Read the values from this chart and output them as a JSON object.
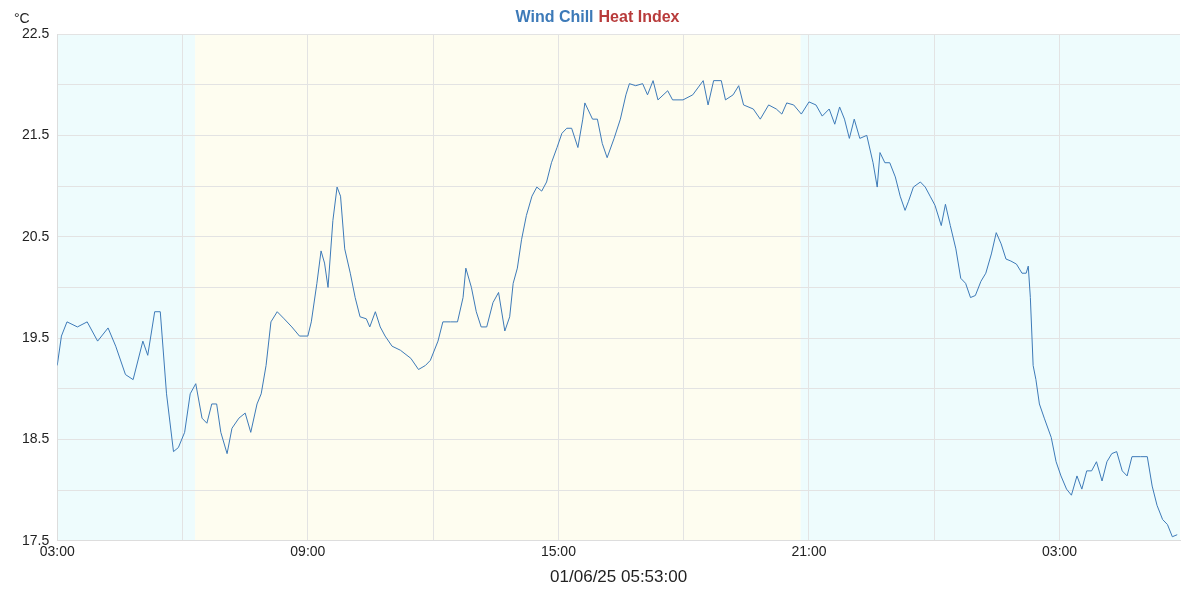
{
  "chart_data": {
    "type": "line",
    "xlabel": "01/06/25 05:53:00",
    "ylabel": "°C",
    "legend": "top",
    "grid": true,
    "marker": "none",
    "line_style": "solid",
    "xlim": [
      "--05-31T03:00",
      "--06-01T05:53"
    ],
    "xticks": [
      {
        "value": "--05-31T03:00",
        "label": "03:00"
      },
      {
        "value": "--05-31T06:00",
        "label": null
      },
      {
        "value": "--05-31T09:00",
        "label": "09:00"
      },
      {
        "value": "--05-31T12:00",
        "label": null
      },
      {
        "value": "--05-31T15:00",
        "label": "15:00"
      },
      {
        "value": "--05-31T18:00",
        "label": null
      },
      {
        "value": "--05-31T21:00",
        "label": "21:00"
      },
      {
        "value": "--06-01T00:00",
        "label": null
      },
      {
        "value": "--06-01T03:00",
        "label": "03:00"
      }
    ],
    "ylim": [
      17.5,
      22.5
    ],
    "yticks": [
      17.5,
      {
        "value": 18,
        "label": null
      },
      18.5,
      {
        "value": 19,
        "label": null
      },
      19.5,
      {
        "value": 20,
        "label": null
      },
      20.5,
      {
        "value": 21,
        "label": null
      },
      21.5,
      {
        "value": 22,
        "label": null
      },
      22.5
    ],
    "bands": [
      {
        "axis": "x",
        "from": "--05-31T03:00",
        "to": "--05-31T06:18",
        "color": "#eefcfd"
      },
      {
        "axis": "x",
        "from": "--05-31T06:18",
        "to": "--05-31T20:48",
        "color": "#fefdf0"
      },
      {
        "axis": "x",
        "from": "--05-31T20:48",
        "to": "--06-01T05:53",
        "color": "#eefcfd"
      }
    ],
    "series": [
      {
        "name": "Wind Chill",
        "color": "#3d7ab8",
        "x": [
          "--05-31T03:00",
          "--05-31T03:06",
          "--05-31T03:14",
          "--05-31T03:29",
          "--05-31T03:43",
          "--05-31T03:58",
          "--05-31T04:13",
          "--05-31T04:24",
          "--05-31T04:38",
          "--05-31T04:49",
          "--05-31T05:03",
          "--05-31T05:10",
          "--05-31T05:20",
          "--05-31T05:28",
          "--05-31T05:37",
          "--05-31T05:47",
          "--05-31T05:54",
          "--05-31T06:03",
          "--05-31T06:11",
          "--05-31T06:19",
          "--05-31T06:28",
          "--05-31T06:35",
          "--05-31T06:42",
          "--05-31T06:49",
          "--05-31T06:55",
          "--05-31T07:04",
          "--05-31T07:11",
          "--05-31T07:21",
          "--05-31T07:30",
          "--05-31T07:38",
          "--05-31T07:47",
          "--05-31T07:53",
          "--05-31T08:00",
          "--05-31T08:07",
          "--05-31T08:16",
          "--05-31T08:26",
          "--05-31T08:37",
          "--05-31T08:48",
          "--05-31T09:00",
          "--05-31T09:05",
          "--05-31T09:13",
          "--05-31T09:19",
          "--05-31T09:24",
          "--05-31T09:29",
          "--05-31T09:36",
          "--05-31T09:42",
          "--05-31T09:47",
          "--05-31T09:53",
          "--05-31T10:01",
          "--05-31T10:08",
          "--05-31T10:15",
          "--05-31T10:24",
          "--05-31T10:29",
          "--05-31T10:37",
          "--05-31T10:44",
          "--05-31T10:51",
          "--05-31T11:01",
          "--05-31T11:13",
          "--05-31T11:28",
          "--05-31T11:39",
          "--05-31T11:49",
          "--05-31T11:56",
          "--05-31T12:07",
          "--05-31T12:14",
          "--05-31T12:25",
          "--05-31T12:35",
          "--05-31T12:43",
          "--05-31T12:47",
          "--05-31T12:55",
          "--05-31T13:02",
          "--05-31T13:09",
          "--05-31T13:17",
          "--05-31T13:26",
          "--05-31T13:34",
          "--05-31T13:43",
          "--05-31T13:50",
          "--05-31T13:55",
          "--05-31T14:01",
          "--05-31T14:07",
          "--05-31T14:14",
          "--05-31T14:22",
          "--05-31T14:29",
          "--05-31T14:36",
          "--05-31T14:43",
          "--05-31T14:50",
          "--05-31T14:58",
          "--05-31T15:05",
          "--05-31T15:12",
          "--05-31T15:19",
          "--05-31T15:28",
          "--05-31T15:35",
          "--05-31T15:38",
          "--05-31T15:49",
          "--05-31T15:56",
          "--05-31T16:03",
          "--05-31T16:10",
          "--05-31T16:20",
          "--05-31T16:29",
          "--05-31T16:37",
          "--05-31T16:42",
          "--05-31T16:51",
          "--05-31T17:01",
          "--05-31T17:08",
          "--05-31T17:16",
          "--05-31T17:23",
          "--05-31T17:37",
          "--05-31T17:44",
          "--05-31T17:59",
          "--05-31T18:13",
          "--05-31T18:28",
          "--05-31T18:35",
          "--05-31T18:43",
          "--05-31T18:54",
          "--05-31T19:00",
          "--05-31T19:11",
          "--05-31T19:19",
          "--05-31T19:26",
          "--05-31T19:40",
          "--05-31T19:50",
          "--05-31T20:02",
          "--05-31T20:13",
          "--05-31T20:21",
          "--05-31T20:28",
          "--05-31T20:38",
          "--05-31T20:49",
          "--05-31T21:00",
          "--05-31T21:10",
          "--05-31T21:19",
          "--05-31T21:29",
          "--05-31T21:37",
          "--05-31T21:44",
          "--05-31T21:51",
          "--05-31T21:58",
          "--05-31T22:05",
          "--05-31T22:13",
          "--05-31T22:23",
          "--05-31T22:32",
          "--05-31T22:38",
          "--05-31T22:42",
          "--05-31T22:49",
          "--05-31T22:56",
          "--05-31T23:04",
          "--05-31T23:11",
          "--05-31T23:18",
          "--05-31T23:23",
          "--05-31T23:30",
          "--05-31T23:40",
          "--05-31T23:47",
          "--05-31T23:54",
          "--06-01T00:01",
          "--06-01T00:10",
          "--06-01T00:16",
          "--06-01T00:23",
          "--06-01T00:31",
          "--06-01T00:38",
          "--06-01T00:45",
          "--06-01T00:52",
          "--06-01T00:59",
          "--06-01T01:07",
          "--06-01T01:14",
          "--06-01T01:22",
          "--06-01T01:29",
          "--06-01T01:36",
          "--06-01T01:43",
          "--06-01T01:50",
          "--06-01T01:58",
          "--06-01T02:06",
          "--06-01T02:12",
          "--06-01T02:15",
          "--06-01T02:18",
          "--06-01T02:22",
          "--06-01T02:26",
          "--06-01T02:31",
          "--06-01T02:38",
          "--06-01T02:48",
          "--06-01T02:55",
          "--06-01T03:02",
          "--06-01T03:10",
          "--06-01T03:17",
          "--06-01T03:25",
          "--06-01T03:32",
          "--06-01T03:39",
          "--06-01T03:46",
          "--06-01T03:53",
          "--06-01T04:01",
          "--06-01T04:08",
          "--06-01T04:15",
          "--06-01T04:22",
          "--06-01T04:30",
          "--06-01T04:37",
          "--06-01T04:44",
          "--06-01T04:56",
          "--06-01T05:06",
          "--06-01T05:13",
          "--06-01T05:20",
          "--06-01T05:28",
          "--06-01T05:35",
          "--06-01T05:42",
          "--06-01T05:49"
        ],
        "values": [
          19.23,
          19.52,
          19.66,
          19.61,
          19.66,
          19.47,
          19.6,
          19.42,
          19.14,
          19.09,
          19.47,
          19.33,
          19.76,
          19.76,
          18.95,
          18.38,
          18.42,
          18.57,
          18.95,
          19.05,
          18.71,
          18.66,
          18.85,
          18.85,
          18.57,
          18.36,
          18.61,
          18.71,
          18.76,
          18.57,
          18.85,
          18.95,
          19.23,
          19.66,
          19.76,
          19.69,
          19.61,
          19.52,
          19.52,
          19.66,
          20.04,
          20.36,
          20.24,
          20.0,
          20.66,
          20.99,
          20.9,
          20.38,
          20.14,
          19.9,
          19.71,
          19.69,
          19.61,
          19.76,
          19.61,
          19.52,
          19.42,
          19.38,
          19.3,
          19.19,
          19.23,
          19.28,
          19.47,
          19.66,
          19.66,
          19.66,
          19.9,
          20.19,
          20.0,
          19.76,
          19.61,
          19.61,
          19.85,
          19.95,
          19.57,
          19.71,
          20.04,
          20.19,
          20.47,
          20.71,
          20.9,
          20.99,
          20.95,
          21.04,
          21.23,
          21.38,
          21.52,
          21.57,
          21.57,
          21.38,
          21.66,
          21.82,
          21.66,
          21.66,
          21.42,
          21.28,
          21.47,
          21.66,
          21.9,
          22.01,
          21.99,
          22.01,
          21.9,
          22.04,
          21.85,
          21.94,
          21.85,
          21.85,
          21.9,
          22.04,
          21.8,
          22.04,
          22.04,
          21.85,
          21.9,
          21.99,
          21.8,
          21.76,
          21.66,
          21.8,
          21.76,
          21.71,
          21.82,
          21.8,
          21.71,
          21.83,
          21.8,
          21.69,
          21.76,
          21.61,
          21.78,
          21.66,
          21.47,
          21.66,
          21.47,
          21.5,
          21.23,
          20.99,
          21.33,
          21.23,
          21.23,
          21.09,
          20.9,
          20.76,
          20.85,
          20.99,
          21.04,
          20.99,
          20.9,
          20.81,
          20.61,
          20.82,
          20.61,
          20.38,
          20.09,
          20.04,
          19.9,
          19.92,
          20.06,
          20.14,
          20.33,
          20.54,
          20.43,
          20.28,
          20.26,
          20.23,
          20.14,
          20.14,
          20.21,
          19.9,
          19.23,
          19.09,
          18.85,
          18.71,
          18.52,
          18.28,
          18.14,
          18.01,
          17.95,
          18.14,
          18.01,
          18.19,
          18.19,
          18.28,
          18.09,
          18.28,
          18.36,
          18.38,
          18.19,
          18.14,
          18.33,
          18.33,
          18.33,
          18.04,
          17.85,
          17.71,
          17.66,
          17.54,
          17.56
        ]
      },
      {
        "name": "Heat Index",
        "color": "#b83b3b"
      }
    ]
  }
}
